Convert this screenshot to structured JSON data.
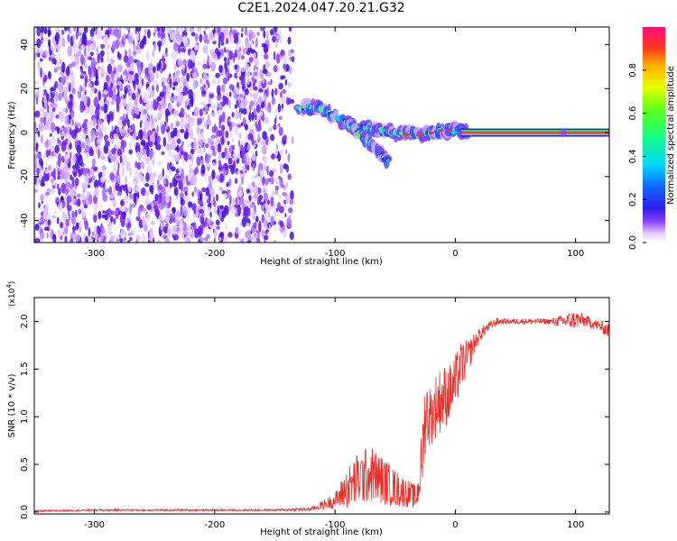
{
  "figure": {
    "title": "C2E1.2024.047.20.21.G32"
  },
  "chart_data": [
    {
      "type": "heatmap",
      "xlabel": "Height of straight line (km)",
      "ylabel": "Frequency (Hz)",
      "xlim": [
        -350,
        128
      ],
      "ylim": [
        -50,
        48
      ],
      "xticks": [
        -300,
        -200,
        -100,
        0,
        100
      ],
      "yticks": [
        -40,
        -20,
        0,
        20,
        40
      ],
      "colorbar": {
        "label": "Normalized spectral amplitude",
        "range": [
          0,
          1
        ],
        "ticks": [
          "0.0",
          "0.2",
          "0.4",
          "0.6",
          "0.8"
        ]
      },
      "regions": [
        {
          "name": "noise",
          "x_range": [
            -350,
            -135
          ],
          "freq_range": [
            -50,
            48
          ]
        },
        {
          "name": "track",
          "points": [
            [
              -130,
              11
            ],
            [
              -115,
              12
            ],
            [
              -100,
              7
            ],
            [
              -85,
              3
            ],
            [
              -70,
              2
            ],
            [
              -60,
              1
            ],
            [
              -50,
              0
            ],
            [
              -40,
              -1
            ],
            [
              -30,
              -1
            ],
            [
              -20,
              0
            ],
            [
              -10,
              1
            ],
            [
              0,
              1
            ],
            [
              10,
              0
            ]
          ]
        },
        {
          "name": "branch",
          "points": [
            [
              -90,
              4
            ],
            [
              -75,
              -3
            ],
            [
              -65,
              -8
            ],
            [
              -55,
              -13
            ]
          ]
        },
        {
          "name": "carrier",
          "x_range": [
            5,
            128
          ],
          "freq": 0
        }
      ]
    },
    {
      "type": "line",
      "xlabel": "Height of straight line (km)",
      "ylabel": "SNR (10 * v/v)",
      "exponent_label": "(x10",
      "exponent_power": "4",
      "exponent_close": ")",
      "xlim": [
        -350,
        128
      ],
      "ylim": [
        -0.02,
        2.25
      ],
      "xticks": [
        -300,
        -200,
        -100,
        0,
        100
      ],
      "yticks": [
        "0.0",
        "0.5",
        "1.0",
        "1.5",
        "2.0"
      ],
      "color": "#e8302a",
      "series": [
        {
          "x": [
            -350,
            -300,
            -250,
            -200,
            -150,
            -120,
            -100,
            -90,
            -80,
            -70,
            -60,
            -50,
            -40,
            -32,
            -28,
            -25,
            -20,
            -15,
            -10,
            -5,
            0,
            5,
            10,
            15,
            20,
            25,
            30,
            35,
            40,
            50,
            60,
            70,
            80,
            90,
            100,
            110,
            120,
            128
          ],
          "y": [
            0.01,
            0.02,
            0.02,
            0.02,
            0.02,
            0.03,
            0.12,
            0.25,
            0.35,
            0.4,
            0.33,
            0.25,
            0.2,
            0.15,
            0.5,
            1.05,
            1.0,
            1.15,
            1.2,
            1.25,
            1.35,
            1.55,
            1.6,
            1.75,
            1.85,
            1.92,
            1.96,
            2.0,
            2.0,
            2.0,
            2.0,
            2.0,
            2.0,
            2.0,
            2.02,
            2.0,
            1.95,
            1.9
          ],
          "spread": [
            0.01,
            0.01,
            0.01,
            0.01,
            0.01,
            0.02,
            0.08,
            0.22,
            0.3,
            0.3,
            0.25,
            0.2,
            0.15,
            0.12,
            0.35,
            0.45,
            0.3,
            0.35,
            0.35,
            0.3,
            0.3,
            0.25,
            0.2,
            0.12,
            0.08,
            0.06,
            0.05,
            0.04,
            0.03,
            0.03,
            0.03,
            0.03,
            0.03,
            0.08,
            0.1,
            0.06,
            0.06,
            0.08
          ]
        }
      ]
    }
  ]
}
